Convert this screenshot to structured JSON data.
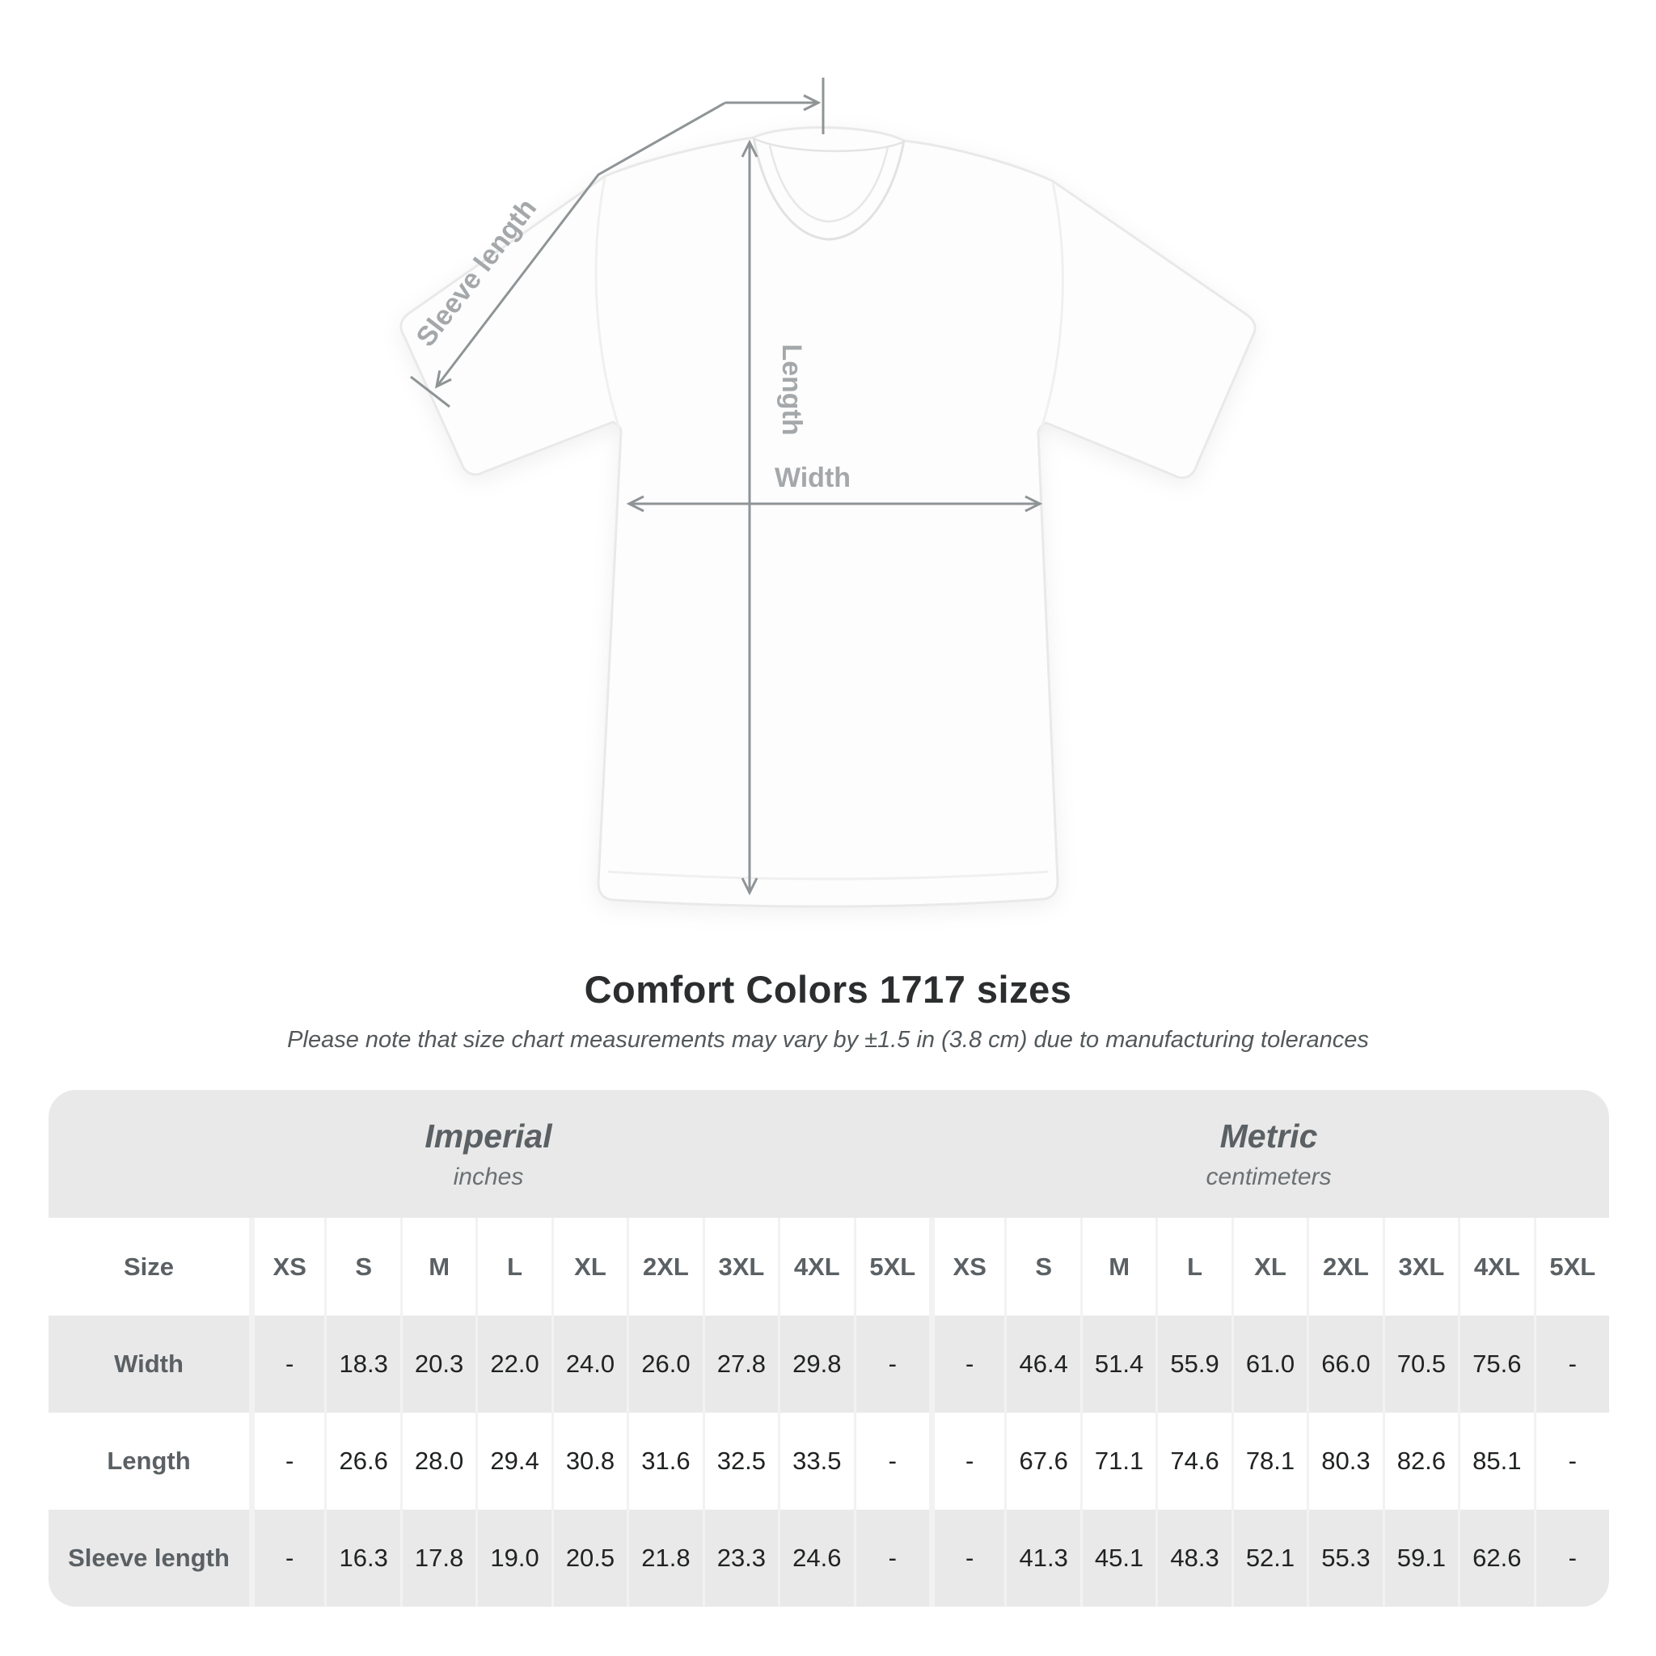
{
  "diagram": {
    "sleeve_length_label": "Sleeve length",
    "length_label": "Length",
    "width_label": "Width"
  },
  "title": "Comfort Colors 1717 sizes",
  "subtitle": "Please note that size chart measurements may vary by ±1.5 in (3.8 cm) due to manufacturing tolerances",
  "table": {
    "size_header": "Size",
    "unit_systems": [
      {
        "name": "Imperial",
        "unit": "inches"
      },
      {
        "name": "Metric",
        "unit": "centimeters"
      }
    ],
    "sizes": [
      "XS",
      "S",
      "M",
      "L",
      "XL",
      "2XL",
      "3XL",
      "4XL",
      "5XL",
      "XS",
      "S",
      "M",
      "L",
      "XL",
      "2XL",
      "3XL",
      "4XL",
      "5XL"
    ],
    "rows": [
      {
        "label": "Width",
        "values": [
          "-",
          "18.3",
          "20.3",
          "22.0",
          "24.0",
          "26.0",
          "27.8",
          "29.8",
          "-",
          "-",
          "46.4",
          "51.4",
          "55.9",
          "61.0",
          "66.0",
          "70.5",
          "75.6",
          "-"
        ]
      },
      {
        "label": "Length",
        "values": [
          "-",
          "26.6",
          "28.0",
          "29.4",
          "30.8",
          "31.6",
          "32.5",
          "33.5",
          "-",
          "-",
          "67.6",
          "71.1",
          "74.6",
          "78.1",
          "80.3",
          "82.6",
          "85.1",
          "-"
        ]
      },
      {
        "label": "Sleeve length",
        "values": [
          "-",
          "16.3",
          "17.8",
          "19.0",
          "20.5",
          "21.8",
          "23.3",
          "24.6",
          "-",
          "-",
          "41.3",
          "45.1",
          "48.3",
          "52.1",
          "55.3",
          "59.1",
          "62.6",
          "-"
        ]
      }
    ]
  },
  "chart_data": {
    "type": "table",
    "title": "Comfort Colors 1717 sizes",
    "note": "Please note that size chart measurements may vary by ±1.5 in (3.8 cm) due to manufacturing tolerances",
    "column_groups": [
      {
        "name": "Imperial",
        "unit": "inches",
        "sizes": [
          "XS",
          "S",
          "M",
          "L",
          "XL",
          "2XL",
          "3XL",
          "4XL",
          "5XL"
        ]
      },
      {
        "name": "Metric",
        "unit": "centimeters",
        "sizes": [
          "XS",
          "S",
          "M",
          "L",
          "XL",
          "2XL",
          "3XL",
          "4XL",
          "5XL"
        ]
      }
    ],
    "measurements": [
      {
        "name": "Width",
        "imperial_in": [
          null,
          18.3,
          20.3,
          22.0,
          24.0,
          26.0,
          27.8,
          29.8,
          null
        ],
        "metric_cm": [
          null,
          46.4,
          51.4,
          55.9,
          61.0,
          66.0,
          70.5,
          75.6,
          null
        ]
      },
      {
        "name": "Length",
        "imperial_in": [
          null,
          26.6,
          28.0,
          29.4,
          30.8,
          31.6,
          32.5,
          33.5,
          null
        ],
        "metric_cm": [
          null,
          67.6,
          71.1,
          74.6,
          78.1,
          80.3,
          82.6,
          85.1,
          null
        ]
      },
      {
        "name": "Sleeve length",
        "imperial_in": [
          null,
          16.3,
          17.8,
          19.0,
          20.5,
          21.8,
          23.3,
          24.6,
          null
        ],
        "metric_cm": [
          null,
          41.3,
          45.1,
          48.3,
          52.1,
          55.3,
          59.1,
          62.6,
          null
        ]
      }
    ]
  },
  "colors": {
    "band_gray": "#e9e9e9",
    "separator": "#f2f2f2",
    "header_text": "#5a6063",
    "value_text": "#202223",
    "annotation_line": "#8f9496",
    "annotation_text": "#a4a8aa",
    "title_text": "#2b2d2e",
    "subtitle_text": "#53585a",
    "shirt_fill": "#fdfdfd",
    "shirt_outline": "#e9e9e9"
  }
}
